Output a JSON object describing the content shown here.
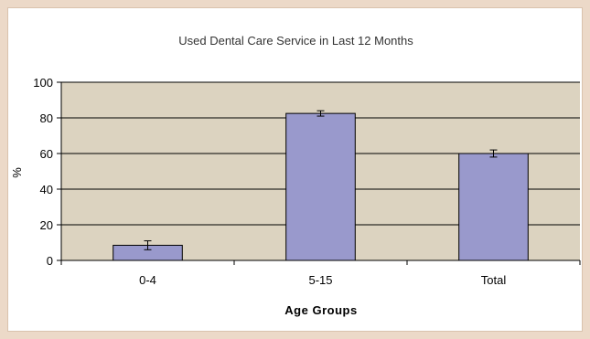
{
  "chart_data": {
    "type": "bar",
    "title": "Used Dental Care Service in Last 12 Months",
    "xlabel": "Age Groups",
    "ylabel": "%",
    "categories": [
      "0-4",
      "5-15",
      "Total"
    ],
    "values": [
      8.5,
      82.5,
      60
    ],
    "error": [
      2.5,
      1.5,
      2
    ],
    "ylim": [
      0,
      100
    ],
    "yticks": [
      0,
      20,
      40,
      60,
      80,
      100
    ],
    "grid": true,
    "legend": "none",
    "colors": {
      "bar_fill": "#9999cc",
      "bar_stroke": "#000000",
      "plot_background": "#dcd3c0",
      "grid": "#000000"
    }
  }
}
